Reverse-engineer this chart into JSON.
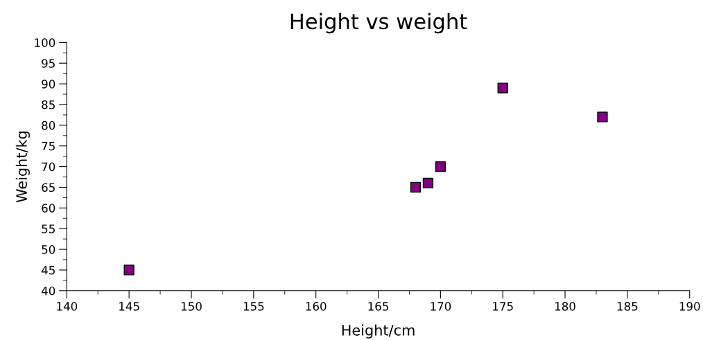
{
  "chart_data": {
    "type": "scatter",
    "title": "Height vs weight",
    "xlabel": "Height/cm",
    "ylabel": "Weight/kg",
    "x": [
      145,
      168,
      169,
      170,
      175,
      183
    ],
    "series": [
      {
        "color": "#800080",
        "values": [
          45,
          65,
          66,
          70,
          89,
          82
        ]
      }
    ],
    "marker": "square",
    "xlim": [
      140,
      190
    ],
    "xticks": [
      140,
      145,
      150,
      155,
      160,
      165,
      170,
      175,
      180,
      185,
      190
    ],
    "ylim": [
      40,
      100
    ],
    "yticks": [
      40,
      45,
      50,
      55,
      60,
      65,
      70,
      75,
      80,
      85,
      90,
      95,
      100
    ],
    "grid": false,
    "legend": false
  }
}
